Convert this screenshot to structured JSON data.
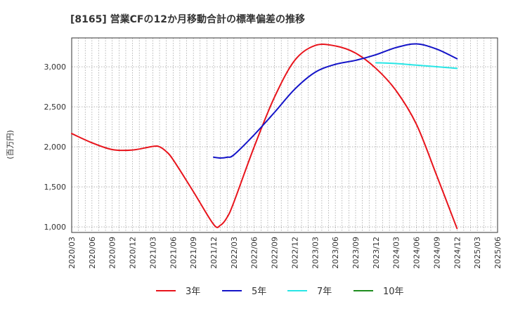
{
  "chart_data": {
    "type": "line",
    "title": "[8165]  営業CFの12か月移動合計の標準偏差の推移",
    "ylabel": "(百万円)",
    "xlabel": "",
    "x_ticks": [
      "2020/03",
      "2020/06",
      "2020/09",
      "2020/12",
      "2021/03",
      "2021/06",
      "2021/09",
      "2021/12",
      "2022/03",
      "2022/06",
      "2022/09",
      "2022/12",
      "2023/03",
      "2023/06",
      "2023/09",
      "2023/12",
      "2024/03",
      "2024/06",
      "2024/09",
      "2024/12",
      "2025/03",
      "2025/06"
    ],
    "y_ticks": [
      1000,
      1500,
      2000,
      2500,
      3000
    ],
    "y_tick_labels": [
      "1,000",
      "1,500",
      "2,000",
      "2,500",
      "3,000"
    ],
    "ylim": [
      930,
      3360
    ],
    "grid": true,
    "legend_position": "bottom",
    "series": [
      {
        "name": "3年",
        "color": "#e8141c",
        "x": [
          "2020/03",
          "2020/06",
          "2020/09",
          "2020/12",
          "2021/03",
          "2021/04",
          "2021/05",
          "2021/06",
          "2021/09",
          "2021/12",
          "2022/01",
          "2022/02",
          "2022/03",
          "2022/06",
          "2022/09",
          "2022/12",
          "2023/03",
          "2023/06",
          "2023/09",
          "2023/12",
          "2024/03",
          "2024/06",
          "2024/09",
          "2024/12"
        ],
        "values": [
          2165,
          2050,
          1965,
          1960,
          2005,
          2000,
          1940,
          1840,
          1440,
          1030,
          1020,
          1120,
          1310,
          2000,
          2620,
          3080,
          3265,
          3260,
          3170,
          2980,
          2700,
          2280,
          1640,
          980
        ]
      },
      {
        "name": "5年",
        "color": "#1414c8",
        "x": [
          "2021/12",
          "2022/01",
          "2022/02",
          "2022/03",
          "2022/06",
          "2022/09",
          "2022/12",
          "2023/03",
          "2023/06",
          "2023/09",
          "2023/12",
          "2024/03",
          "2024/06",
          "2024/09",
          "2024/12"
        ],
        "values": [
          1870,
          1860,
          1870,
          1900,
          2150,
          2430,
          2720,
          2930,
          3030,
          3080,
          3150,
          3240,
          3285,
          3220,
          3100
        ]
      },
      {
        "name": "7年",
        "color": "#28e6e6",
        "x": [
          "2023/12",
          "2024/03",
          "2024/06",
          "2024/09",
          "2024/12"
        ],
        "values": [
          3050,
          3040,
          3020,
          3000,
          2980
        ]
      },
      {
        "name": "10年",
        "color": "#1e8c1e",
        "x": [],
        "values": []
      }
    ]
  }
}
